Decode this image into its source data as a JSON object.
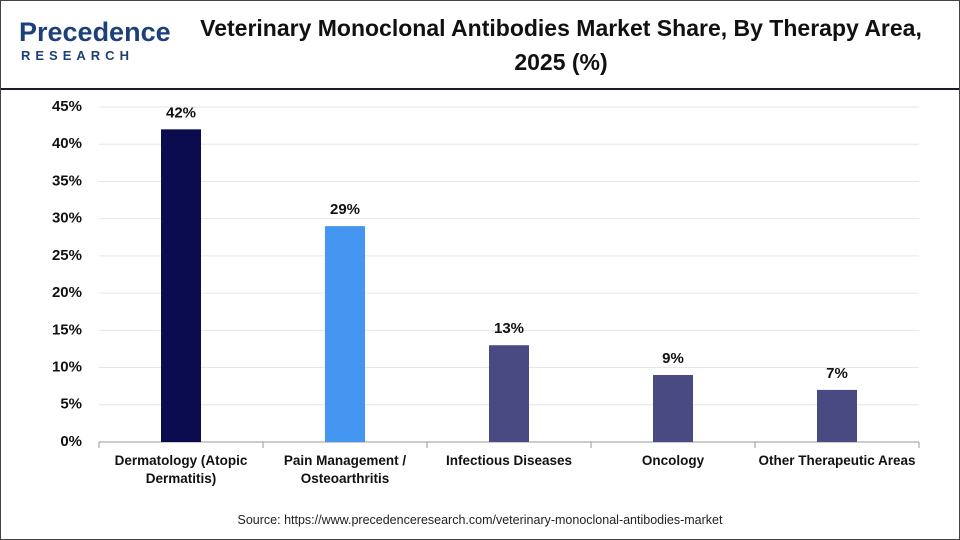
{
  "logo": {
    "name": "Precedence",
    "tagline": "RESEARCH"
  },
  "chart_data": {
    "type": "bar",
    "title": "Veterinary Monoclonal Antibodies Market Share, By Therapy Area, 2025 (%)",
    "categories": [
      "Dermatology (Atopic Dermatitis)",
      "Pain Management / Osteoarthritis",
      "Infectious Diseases",
      "Oncology",
      "Other Therapeutic Areas"
    ],
    "values": [
      42,
      29,
      13,
      9,
      7
    ],
    "value_labels": [
      "42%",
      "29%",
      "13%",
      "9%",
      "7%"
    ],
    "colors": [
      "#0b0c4f",
      "#4596f0",
      "#4a4a82",
      "#4a4a82",
      "#4a4a82"
    ],
    "ylim": [
      0,
      45
    ],
    "yticks": [
      {
        "value": 0,
        "label": "0%"
      },
      {
        "value": 5,
        "label": "5%"
      },
      {
        "value": 10,
        "label": "10%"
      },
      {
        "value": 15,
        "label": "15%"
      },
      {
        "value": 20,
        "label": "20%"
      },
      {
        "value": 25,
        "label": "25%"
      },
      {
        "value": 30,
        "label": "30%"
      },
      {
        "value": 35,
        "label": "35%"
      },
      {
        "value": 40,
        "label": "40%"
      },
      {
        "value": 45,
        "label": "45%"
      }
    ],
    "grid": true,
    "source": "Source: https://www.precedenceresearch.com/veterinary-monoclonal-antibodies-market"
  }
}
